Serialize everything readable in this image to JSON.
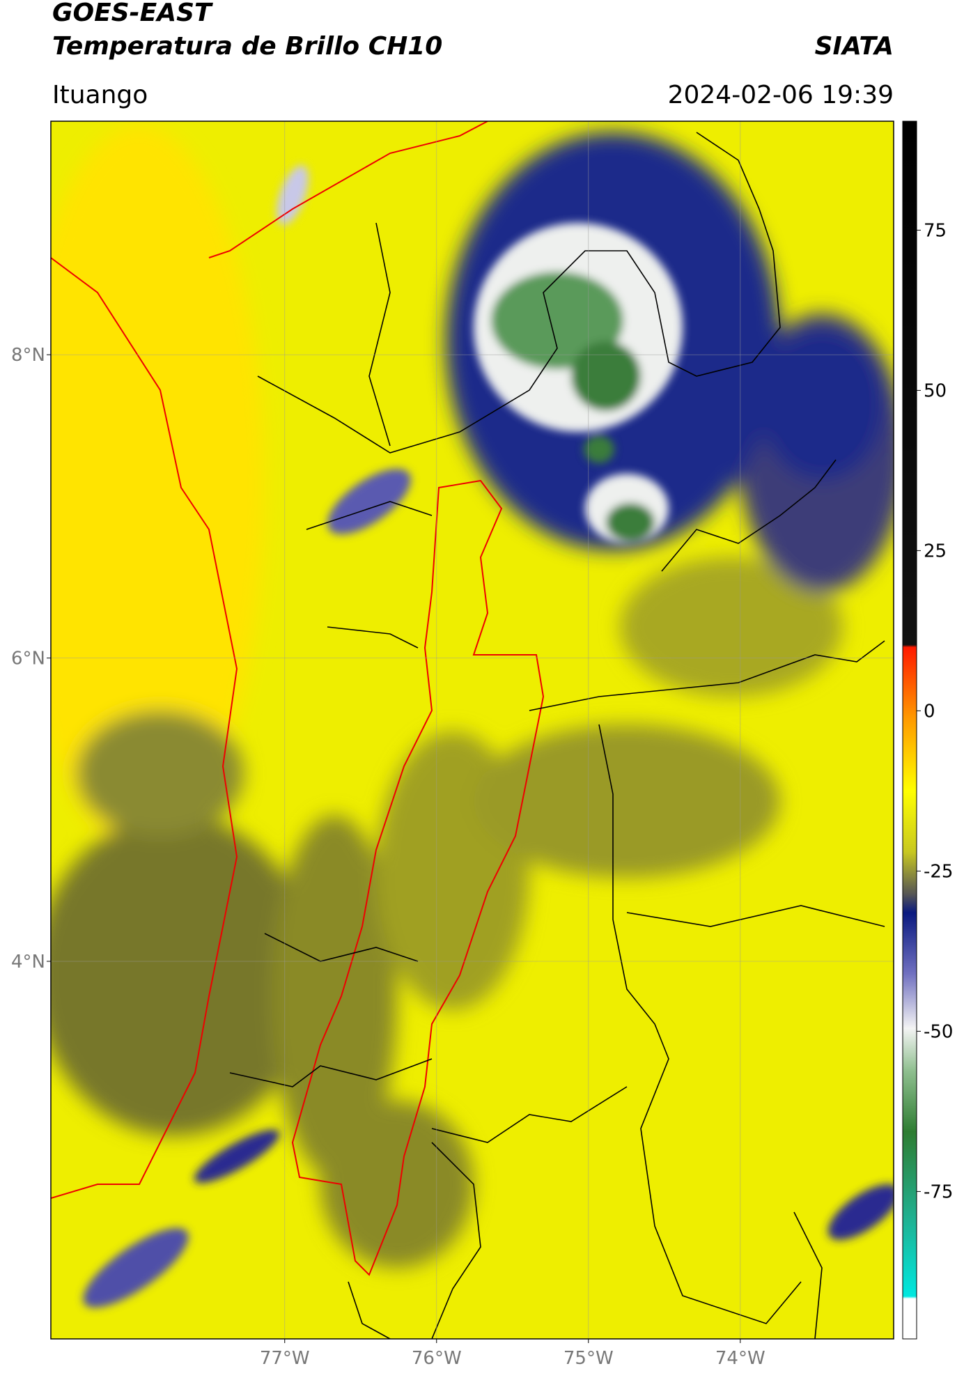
{
  "header": {
    "title": "GOES-EAST",
    "subtitle": "Temperatura de Brillo CH10",
    "source": "SIATA",
    "location": "Ituango",
    "timestamp": "2024-02-06 19:39"
  },
  "map": {
    "xlim": [
      -78.54,
      -72.99
    ],
    "ylim": [
      1.51,
      9.54
    ],
    "xticks": [
      {
        "value": -77,
        "label": "77°W"
      },
      {
        "value": -76,
        "label": "76°W"
      },
      {
        "value": -75,
        "label": "75°W"
      },
      {
        "value": -74,
        "label": "74°W"
      }
    ],
    "yticks": [
      {
        "value": 8,
        "label": "8°N"
      },
      {
        "value": 6,
        "label": "6°N"
      },
      {
        "value": 4,
        "label": "4°N"
      }
    ]
  },
  "colorbar": {
    "ylim": [
      -98,
      92
    ],
    "yticks": [
      75,
      50,
      25,
      0,
      -25,
      -50,
      -75
    ]
  }
}
